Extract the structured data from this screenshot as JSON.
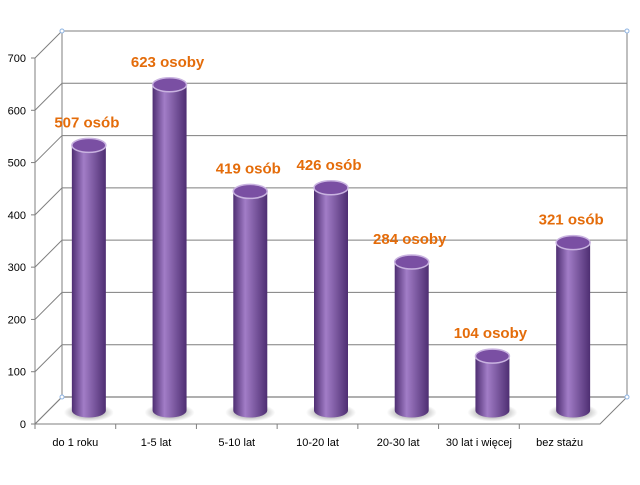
{
  "chart_data": {
    "type": "bar",
    "style": "3d-cylinder",
    "categories": [
      "do 1 roku",
      "1-5 lat",
      "5-10 lat",
      "10-20 lat",
      "20-30 lat",
      "30 lat i więcej",
      "bez stażu"
    ],
    "values": [
      507,
      623,
      419,
      426,
      284,
      104,
      321
    ],
    "data_labels": [
      "507 osób",
      "623 osoby",
      "419 osób",
      "426 osób",
      "284 osoby",
      "104 osoby",
      "321 osób"
    ],
    "yticks": [
      "0",
      "100",
      "200",
      "300",
      "400",
      "500",
      "600",
      "700"
    ],
    "ylim": [
      0,
      700
    ],
    "grid": true,
    "legend": "none",
    "colors": {
      "bar_body": "#7a4fa3",
      "bar_light": "#a27dc7",
      "bar_dark": "#4e2e72",
      "bar_top": "#c9b3e0",
      "data_label": "#e46c0a",
      "grid": "#7f7f7f"
    }
  }
}
